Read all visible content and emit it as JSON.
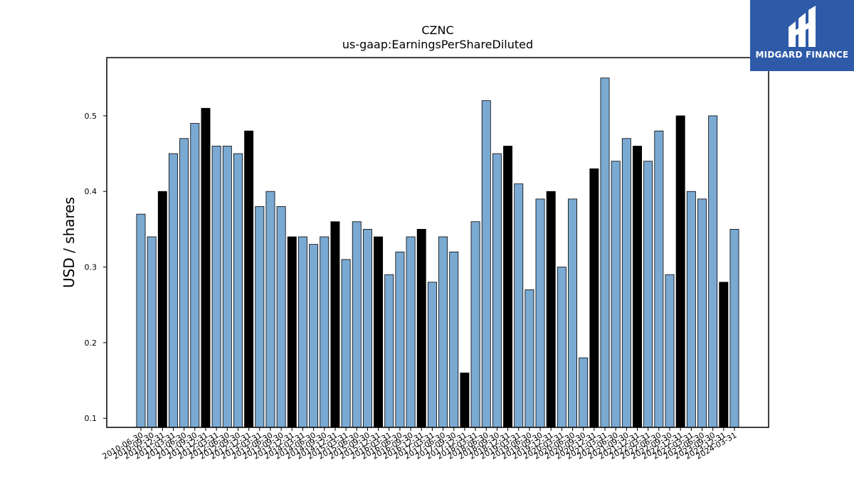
{
  "brand": {
    "name": "MIDGARD FINANCE",
    "bg_color": "#2e5aa8"
  },
  "chart_data": {
    "type": "bar",
    "title": "CZNC",
    "subtitle": "us-gaap:EarningsPerShareDiluted",
    "xlabel": "",
    "ylabel": "USD / shares",
    "ylim": [
      0.088,
      0.577
    ],
    "yticks": [
      0.1,
      0.2,
      0.3,
      0.4,
      0.5
    ],
    "grid": false,
    "colors": {
      "quarterly": "#7aa9d2",
      "annual": "#000000",
      "edge": "#000000"
    },
    "categories": [
      "2010-06-30",
      "2010-09-30",
      "2010-12-31",
      "2011-03-31",
      "2011-06-30",
      "2011-09-30",
      "2011-12-31",
      "2012-03-31",
      "2012-06-30",
      "2012-09-30",
      "2012-12-31",
      "2013-03-31",
      "2013-06-30",
      "2013-09-30",
      "2013-12-31",
      "2014-03-31",
      "2014-06-30",
      "2014-09-30",
      "2014-12-31",
      "2015-03-31",
      "2015-06-30",
      "2015-09-30",
      "2015-12-31",
      "2016-03-31",
      "2016-06-30",
      "2016-09-30",
      "2016-12-31",
      "2017-03-31",
      "2017-06-30",
      "2017-09-30",
      "2017-12-31",
      "2018-03-31",
      "2018-06-30",
      "2018-09-30",
      "2018-12-31",
      "2019-03-31",
      "2019-06-30",
      "2019-09-30",
      "2019-12-31",
      "2020-03-31",
      "2020-06-30",
      "2020-09-30",
      "2020-12-31",
      "2021-03-31",
      "2021-06-30",
      "2021-09-30",
      "2021-12-31",
      "2022-03-31",
      "2022-06-30",
      "2022-09-30",
      "2022-12-31",
      "2023-03-31",
      "2023-06-30",
      "2023-09-30",
      "2023-12-31",
      "2024-03-31"
    ],
    "values": [
      0.37,
      0.34,
      0.4,
      0.45,
      0.47,
      0.49,
      0.51,
      0.46,
      0.46,
      0.45,
      0.48,
      0.38,
      0.4,
      0.38,
      0.34,
      0.34,
      0.33,
      0.34,
      0.36,
      0.31,
      0.36,
      0.35,
      0.34,
      0.29,
      0.32,
      0.34,
      0.35,
      0.28,
      0.34,
      0.32,
      0.16,
      0.36,
      0.52,
      0.45,
      0.46,
      0.41,
      0.27,
      0.39,
      0.4,
      0.3,
      0.39,
      0.18,
      0.43,
      0.55,
      0.44,
      0.47,
      0.46,
      0.44,
      0.48,
      0.29,
      0.5,
      0.4,
      0.39,
      0.5,
      0.28,
      0.35
    ],
    "annual_flags": [
      0,
      0,
      1,
      0,
      0,
      0,
      1,
      0,
      0,
      0,
      1,
      0,
      0,
      0,
      1,
      0,
      0,
      0,
      1,
      0,
      0,
      0,
      1,
      0,
      0,
      0,
      1,
      0,
      0,
      0,
      1,
      0,
      0,
      0,
      1,
      0,
      0,
      0,
      1,
      0,
      0,
      0,
      1,
      0,
      0,
      0,
      1,
      0,
      0,
      0,
      1,
      0,
      0,
      0,
      1,
      0
    ]
  }
}
